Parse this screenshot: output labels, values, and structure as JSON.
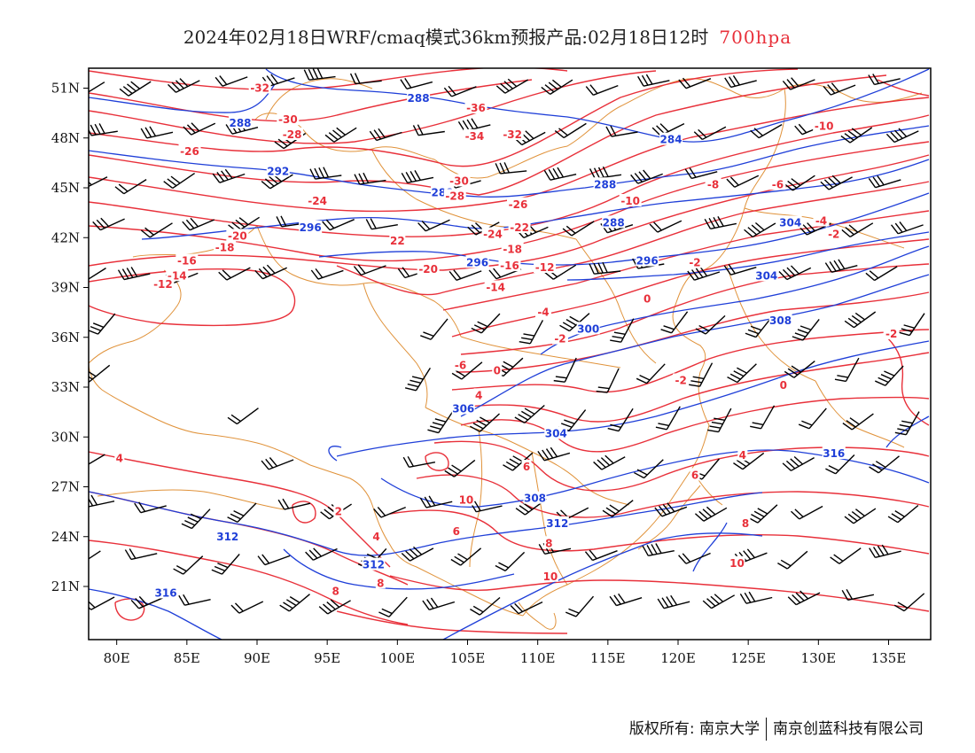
{
  "title": {
    "main": "2024年02月18日WRF/cmaq模式36km预报产品:02月18日12时",
    "level": "700hpa"
  },
  "x_ticks": [
    "80E",
    "85E",
    "90E",
    "95E",
    "100E",
    "105E",
    "110E",
    "115E",
    "120E",
    "125E",
    "130E",
    "135E"
  ],
  "y_ticks": [
    "51N",
    "48N",
    "45N",
    "42N",
    "39N",
    "36N",
    "33N",
    "30N",
    "27N",
    "24N",
    "21N"
  ],
  "footer": {
    "copyright": "版权所有: 南京大学",
    "company": "南京创蓝科技有限公司"
  },
  "colors": {
    "geopotential": "#1f3fd8",
    "temperature": "#e8303a",
    "borders": "#e0923a",
    "wind_barbs": "#000000"
  },
  "map_data": {
    "lon_range": [
      78,
      138
    ],
    "lat_range": [
      17.8,
      52.2
    ],
    "height_contours": [
      {
        "label": "288",
        "lon": 101.5,
        "lat": 50.4
      },
      {
        "label": "288",
        "lon": 88.8,
        "lat": 48.9
      },
      {
        "label": "284",
        "lon": 119.5,
        "lat": 47.9
      },
      {
        "label": "292",
        "lon": 91.5,
        "lat": 46.0
      },
      {
        "label": "288",
        "lon": 114.8,
        "lat": 45.2
      },
      {
        "label": "288",
        "lon": 103.2,
        "lat": 44.7
      },
      {
        "label": "288",
        "lon": 115.4,
        "lat": 42.9
      },
      {
        "label": "296",
        "lon": 93.8,
        "lat": 42.6
      },
      {
        "label": "304",
        "lon": 128.0,
        "lat": 42.9
      },
      {
        "label": "296",
        "lon": 105.7,
        "lat": 40.5
      },
      {
        "label": "296",
        "lon": 117.8,
        "lat": 40.6
      },
      {
        "label": "304",
        "lon": 126.3,
        "lat": 39.7
      },
      {
        "label": "308",
        "lon": 127.3,
        "lat": 37.0
      },
      {
        "label": "300",
        "lon": 113.6,
        "lat": 36.5
      },
      {
        "label": "306",
        "lon": 104.7,
        "lat": 31.7
      },
      {
        "label": "304",
        "lon": 111.3,
        "lat": 30.2
      },
      {
        "label": "316",
        "lon": 131.1,
        "lat": 29.0
      },
      {
        "label": "308",
        "lon": 109.8,
        "lat": 26.3
      },
      {
        "label": "312",
        "lon": 111.4,
        "lat": 24.8
      },
      {
        "label": "312",
        "lon": 87.9,
        "lat": 24.0
      },
      {
        "label": "312",
        "lon": 98.3,
        "lat": 22.3
      },
      {
        "label": "316",
        "lon": 83.5,
        "lat": 20.6
      }
    ],
    "temperature_contours": [
      {
        "label": "-32",
        "lon": 90.2,
        "lat": 51.0
      },
      {
        "label": "-36",
        "lon": 105.6,
        "lat": 49.8
      },
      {
        "label": "-30",
        "lon": 92.2,
        "lat": 49.1
      },
      {
        "label": "-28",
        "lon": 92.5,
        "lat": 48.2
      },
      {
        "label": "-34",
        "lon": 105.5,
        "lat": 48.1
      },
      {
        "label": "-32",
        "lon": 108.2,
        "lat": 48.2
      },
      {
        "label": "-10",
        "lon": 130.4,
        "lat": 48.7
      },
      {
        "label": "-26",
        "lon": 85.2,
        "lat": 47.2
      },
      {
        "label": "-30",
        "lon": 104.4,
        "lat": 45.4
      },
      {
        "label": "-28",
        "lon": 104.1,
        "lat": 44.5
      },
      {
        "label": "-8",
        "lon": 122.5,
        "lat": 45.2
      },
      {
        "label": "-6",
        "lon": 127.1,
        "lat": 45.2
      },
      {
        "label": "-24",
        "lon": 94.3,
        "lat": 44.2
      },
      {
        "label": "-26",
        "lon": 108.6,
        "lat": 44.0
      },
      {
        "label": "-10",
        "lon": 116.6,
        "lat": 44.2
      },
      {
        "label": "-20",
        "lon": 88.6,
        "lat": 42.1
      },
      {
        "label": "-22",
        "lon": 108.7,
        "lat": 42.6
      },
      {
        "label": "-24",
        "lon": 106.8,
        "lat": 42.2
      },
      {
        "label": "-4",
        "lon": 130.2,
        "lat": 43.0
      },
      {
        "label": "-2",
        "lon": 131.1,
        "lat": 42.2
      },
      {
        "label": "-18",
        "lon": 87.7,
        "lat": 41.4
      },
      {
        "label": "22",
        "lon": 100.0,
        "lat": 41.8
      },
      {
        "label": "-18",
        "lon": 108.2,
        "lat": 41.3
      },
      {
        "label": "-2",
        "lon": 121.2,
        "lat": 40.5
      },
      {
        "label": "-16",
        "lon": 85.0,
        "lat": 40.6
      },
      {
        "label": "-20",
        "lon": 102.2,
        "lat": 40.1
      },
      {
        "label": "-16",
        "lon": 108.0,
        "lat": 40.3
      },
      {
        "label": "-12",
        "lon": 110.5,
        "lat": 40.2
      },
      {
        "label": "-14",
        "lon": 84.3,
        "lat": 39.7
      },
      {
        "label": "-12",
        "lon": 83.3,
        "lat": 39.2
      },
      {
        "label": "-14",
        "lon": 107.0,
        "lat": 39.0
      },
      {
        "label": "0",
        "lon": 117.8,
        "lat": 38.3
      },
      {
        "label": "-4",
        "lon": 110.4,
        "lat": 37.5
      },
      {
        "label": "-2",
        "lon": 111.6,
        "lat": 35.9
      },
      {
        "label": "-2",
        "lon": 135.2,
        "lat": 36.2
      },
      {
        "label": "-6",
        "lon": 104.5,
        "lat": 34.3
      },
      {
        "label": "0",
        "lon": 107.1,
        "lat": 34.0
      },
      {
        "label": "-2",
        "lon": 120.2,
        "lat": 33.4
      },
      {
        "label": "0",
        "lon": 127.5,
        "lat": 33.1
      },
      {
        "label": "4",
        "lon": 105.8,
        "lat": 32.5
      },
      {
        "label": "4",
        "lon": 80.2,
        "lat": 28.7
      },
      {
        "label": "6",
        "lon": 109.2,
        "lat": 28.2
      },
      {
        "label": "4",
        "lon": 124.6,
        "lat": 28.9
      },
      {
        "label": "6",
        "lon": 121.2,
        "lat": 27.7
      },
      {
        "label": "10",
        "lon": 104.9,
        "lat": 26.2
      },
      {
        "label": "2",
        "lon": 95.8,
        "lat": 25.5
      },
      {
        "label": "4",
        "lon": 98.5,
        "lat": 24.0
      },
      {
        "label": "6",
        "lon": 104.2,
        "lat": 24.3
      },
      {
        "label": "8",
        "lon": 124.8,
        "lat": 24.8
      },
      {
        "label": "8",
        "lon": 110.8,
        "lat": 23.6
      },
      {
        "label": "10",
        "lon": 124.2,
        "lat": 22.4
      },
      {
        "label": "10",
        "lon": 110.9,
        "lat": 21.6
      },
      {
        "label": "8",
        "lon": 98.8,
        "lat": 21.2
      },
      {
        "label": "8",
        "lon": 95.6,
        "lat": 20.7
      }
    ]
  }
}
